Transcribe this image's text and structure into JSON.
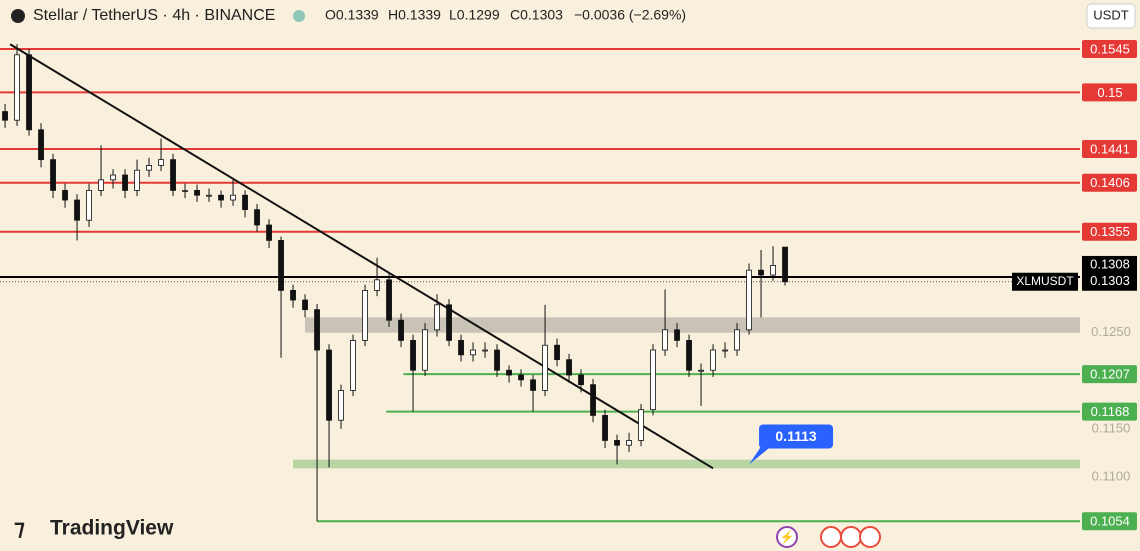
{
  "header": {
    "symbol": "Stellar / TetherUS · 4h · BINANCE",
    "ohlc": [
      "O0.1339",
      "H0.1339",
      "L0.1299",
      "C0.1303"
    ],
    "change": "−0.0036 (−2.69%)",
    "currency": "USDT",
    "brand": "TradingView"
  },
  "chart_data": {
    "type": "candlestick",
    "xlim": [
      -0.42,
      89.58
    ],
    "ylim": [
      0.1023,
      0.1596
    ],
    "yticks": [
      {
        "value": 0.125,
        "label": "0.1250"
      },
      {
        "value": 0.115,
        "label": "0.1150"
      },
      {
        "value": 0.11,
        "label": "0.1100"
      }
    ],
    "up_color": "#ffffff",
    "down_color": "#111111",
    "wick_color": "#111111",
    "open": [
      0.148,
      0.1471,
      0.1539,
      0.1461,
      0.143,
      0.1398,
      0.1388,
      0.1367,
      0.1398,
      0.1409,
      0.1414,
      0.1398,
      0.1419,
      0.1424,
      0.143,
      0.1398,
      0.1398,
      0.1393,
      0.1393,
      0.1388,
      0.1393,
      0.1378,
      0.1362,
      0.1346,
      0.1294,
      0.1284,
      0.1274,
      0.1232,
      0.1159,
      0.119,
      0.1242,
      0.1294,
      0.1305,
      0.1263,
      0.1242,
      0.1211,
      0.1253,
      0.1279,
      0.1242,
      0.1227,
      0.1232,
      0.1232,
      0.1211,
      0.1206,
      0.1201,
      0.119,
      0.1237,
      0.1222,
      0.1206,
      0.1196,
      0.1164,
      0.1138,
      0.1133,
      0.1138,
      0.117,
      0.1232,
      0.1253,
      0.1242,
      0.1211,
      0.1211,
      0.1232,
      0.1232,
      0.1253,
      0.1315,
      0.131,
      0.1339
    ],
    "high": [
      0.1488,
      0.155,
      0.1545,
      0.1468,
      0.1436,
      0.1405,
      0.1394,
      0.1405,
      0.1445,
      0.142,
      0.142,
      0.143,
      0.1432,
      0.1452,
      0.1436,
      0.1405,
      0.1404,
      0.14,
      0.1398,
      0.141,
      0.1398,
      0.1384,
      0.1368,
      0.135,
      0.13,
      0.129,
      0.128,
      0.1238,
      0.1196,
      0.1248,
      0.13,
      0.1328,
      0.1311,
      0.127,
      0.1248,
      0.126,
      0.129,
      0.1285,
      0.1248,
      0.124,
      0.124,
      0.1238,
      0.1216,
      0.1212,
      0.1206,
      0.1279,
      0.1244,
      0.1228,
      0.1212,
      0.1202,
      0.117,
      0.1144,
      0.1146,
      0.1176,
      0.1238,
      0.1295,
      0.126,
      0.1248,
      0.1218,
      0.1238,
      0.124,
      0.126,
      0.1322,
      0.1336,
      0.134,
      0.1339
    ],
    "low": [
      0.1463,
      0.1465,
      0.1455,
      0.1422,
      0.139,
      0.138,
      0.1346,
      0.136,
      0.1392,
      0.14,
      0.139,
      0.1392,
      0.1412,
      0.1418,
      0.1392,
      0.139,
      0.1386,
      0.1386,
      0.138,
      0.1382,
      0.137,
      0.1355,
      0.1338,
      0.1224,
      0.1276,
      0.1266,
      0.1054,
      0.111,
      0.115,
      0.1184,
      0.1236,
      0.1288,
      0.1256,
      0.1235,
      0.1168,
      0.1205,
      0.1246,
      0.1236,
      0.122,
      0.122,
      0.1224,
      0.1204,
      0.1198,
      0.1194,
      0.1168,
      0.1184,
      0.1215,
      0.1198,
      0.1188,
      0.1157,
      0.113,
      0.1113,
      0.1126,
      0.1132,
      0.1164,
      0.1226,
      0.1235,
      0.1204,
      0.1174,
      0.1204,
      0.1224,
      0.1226,
      0.1248,
      0.1266,
      0.1304,
      0.1299
    ],
    "close": [
      0.1471,
      0.1539,
      0.1461,
      0.143,
      0.1398,
      0.1388,
      0.1367,
      0.1398,
      0.1409,
      0.1414,
      0.1398,
      0.1419,
      0.1424,
      0.143,
      0.1398,
      0.1398,
      0.1393,
      0.1393,
      0.1388,
      0.1393,
      0.1378,
      0.1362,
      0.1346,
      0.1294,
      0.1284,
      0.1274,
      0.1232,
      0.1159,
      0.119,
      0.1242,
      0.1294,
      0.1305,
      0.1263,
      0.1242,
      0.1211,
      0.1253,
      0.1279,
      0.1242,
      0.1227,
      0.1232,
      0.1232,
      0.1211,
      0.1206,
      0.1201,
      0.119,
      0.1237,
      0.1222,
      0.1206,
      0.1196,
      0.1164,
      0.1138,
      0.1133,
      0.1138,
      0.117,
      0.1232,
      0.1253,
      0.1242,
      0.1211,
      0.1211,
      0.1232,
      0.1232,
      0.1253,
      0.1315,
      0.131,
      0.132,
      0.1303
    ],
    "levels": [
      {
        "value": 0.1545,
        "color": "#e53935",
        "start": -0.42
      },
      {
        "value": 0.15,
        "color": "#e53935",
        "start": -0.42
      },
      {
        "value": 0.1441,
        "color": "#e53935",
        "start": -0.42
      },
      {
        "value": 0.1406,
        "color": "#e53935",
        "start": -0.42
      },
      {
        "value": 0.1355,
        "color": "#e53935",
        "start": -0.42
      },
      {
        "value": 0.1207,
        "color": "#4caf50",
        "start": 33.2
      },
      {
        "value": 0.1168,
        "color": "#4caf50",
        "start": 31.75
      },
      {
        "value": 0.1054,
        "color": "#4caf50",
        "start": 26
      }
    ],
    "zones": [
      {
        "from": 0.125,
        "to": 0.1266,
        "color": "#c8c3b6",
        "start": 25
      },
      {
        "from": 0.1109,
        "to": 0.1118,
        "color": "#b9d5a4",
        "start": 24
      }
    ],
    "trendline": {
      "x": [
        0.42,
        59
      ],
      "y": [
        0.155,
        0.1109
      ]
    },
    "last_price": {
      "value": 0.1308,
      "color": "#000000"
    },
    "close_price": {
      "value": 0.1303,
      "symbol": "XLMUSDT"
    },
    "callout": {
      "value": 0.1113,
      "label": "0.1113",
      "color": "#2962ff",
      "x": 62
    }
  }
}
